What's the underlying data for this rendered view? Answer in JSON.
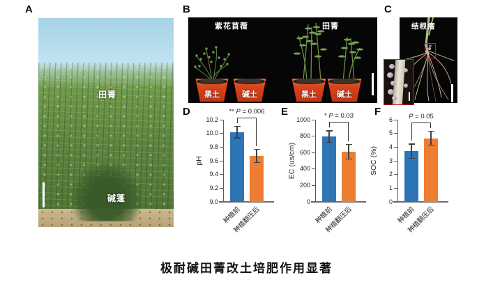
{
  "panels": {
    "a": {
      "label": "A",
      "tags": {
        "tianjing": "田菁",
        "jianpeng": "碱蓬"
      }
    },
    "b": {
      "label": "B",
      "group_left": "紫花苜蓿",
      "group_right": "田菁",
      "pots": [
        "黑土",
        "碱土",
        "黑土",
        "碱土"
      ]
    },
    "c": {
      "label": "C",
      "tag": "结根瘤"
    },
    "d": {
      "label": "D"
    },
    "e": {
      "label": "E"
    },
    "f": {
      "label": "F"
    }
  },
  "caption": "极耐碱田菁改土培肥作用显著",
  "colors": {
    "bar_before": "#2E75B6",
    "bar_after": "#ED7D31"
  },
  "chart_data": [
    {
      "type": "bar",
      "panel": "D",
      "ylabel": "pH",
      "categories": [
        "种植前",
        "种植翻压后"
      ],
      "values": [
        10.02,
        9.67
      ],
      "errors": [
        0.09,
        0.1
      ],
      "ylim": [
        9.0,
        10.2
      ],
      "ytick_step": 0.2,
      "significance": "** P = 0.006",
      "bar_colors": [
        "#2E75B6",
        "#ED7D31"
      ],
      "grid": false,
      "legend": false
    },
    {
      "type": "bar",
      "panel": "E",
      "ylabel": "EC (us/cm)",
      "categories": [
        "种植前",
        "种植翻压后"
      ],
      "values": [
        795,
        610
      ],
      "errors": [
        75,
        95
      ],
      "ylim": [
        0,
        1000
      ],
      "ytick_step": 200,
      "significance": "* P = 0.03",
      "bar_colors": [
        "#2E75B6",
        "#ED7D31"
      ],
      "grid": false,
      "legend": false
    },
    {
      "type": "bar",
      "panel": "F",
      "ylabel": "SOC (%)",
      "categories": [
        "种植前",
        "种植翻压后"
      ],
      "values": [
        3.7,
        4.65
      ],
      "errors": [
        0.55,
        0.55
      ],
      "ylim": [
        0,
        6
      ],
      "ytick_step": 1,
      "significance": "P = 0.05",
      "bar_colors": [
        "#2E75B6",
        "#ED7D31"
      ],
      "grid": false,
      "legend": false
    }
  ]
}
